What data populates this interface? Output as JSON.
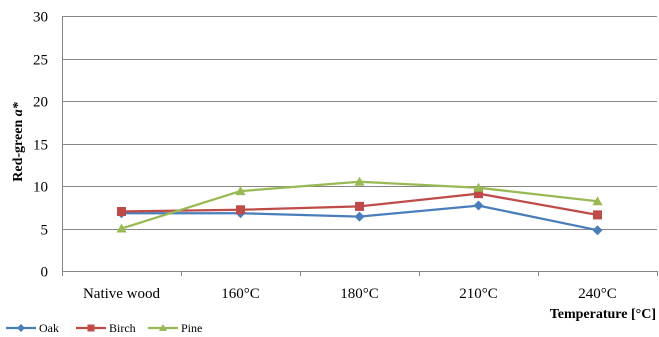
{
  "chart_data": {
    "type": "line",
    "title": "",
    "xlabel": "Temperature [°C]",
    "ylabel": "Red-green a*",
    "ylabel_parts": [
      "Red-green ",
      "a*"
    ],
    "categories": [
      "Native wood",
      "160°C",
      "180°C",
      "210°C",
      "240°C"
    ],
    "ylim": [
      0,
      30
    ],
    "yticks": [
      0,
      5,
      10,
      15,
      20,
      25,
      30
    ],
    "grid": true,
    "legend_position": "bottom-left",
    "series": [
      {
        "name": "Oak",
        "color": "#4a7ebb",
        "marker": "diamond",
        "values": [
          6.8,
          6.8,
          6.4,
          7.7,
          4.8
        ]
      },
      {
        "name": "Birch",
        "color": "#be4b48",
        "marker": "square",
        "values": [
          7.0,
          7.2,
          7.6,
          9.1,
          6.6
        ]
      },
      {
        "name": "Pine",
        "color": "#98b954",
        "marker": "triangle",
        "values": [
          5.0,
          9.4,
          10.5,
          9.8,
          8.2
        ]
      }
    ]
  }
}
